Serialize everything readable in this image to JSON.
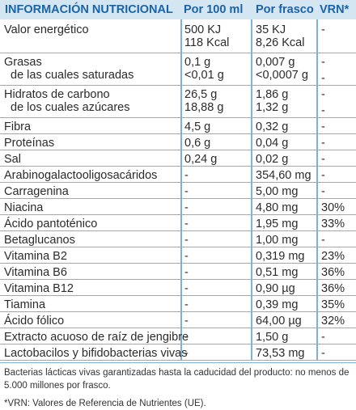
{
  "header": {
    "name": "INFORMACIÓN NUTRICIONAL",
    "per100": "Por 100 ml",
    "perBottle": "Por frasco",
    "vrn": "VRN*"
  },
  "rows": [
    {
      "name": "Valor energético",
      "per100": "500 KJ",
      "per100b": "118 Kcal",
      "bottle": "35 KJ",
      "bottleb": "8,26 Kcal",
      "vrn": "-"
    },
    {
      "name": "Grasas",
      "name2": "de las cuales saturadas",
      "per100": "0,1 g",
      "per100b": "<0,01 g",
      "bottle": "0,007 g",
      "bottleb": "<0,0007 g",
      "vrn": "-",
      "vrnb": "-"
    },
    {
      "name": "Hidratos de carbono",
      "name2": "de los cuales azúcares",
      "per100": "26,5 g",
      "per100b": "18,88 g",
      "bottle": "1,86 g",
      "bottleb": "1,32 g",
      "vrn": "-",
      "vrnb": "-"
    },
    {
      "name": "Fibra",
      "per100": "4,5 g",
      "bottle": "0,32 g",
      "vrn": "-"
    },
    {
      "name": "Proteínas",
      "per100": "0,6 g",
      "bottle": "0,04 g",
      "vrn": "-"
    },
    {
      "name": "Sal",
      "per100": "0,24 g",
      "bottle": "0,02 g",
      "vrn": "-"
    },
    {
      "name": "Arabinogalactooligosacáridos",
      "per100": "-",
      "bottle": "354,60 mg",
      "vrn": "-"
    },
    {
      "name": "Carragenina",
      "per100": "-",
      "bottle": "5,00 mg",
      "vrn": "-"
    },
    {
      "name": "Niacina",
      "per100": "-",
      "bottle": "4,80 mg",
      "vrn": "30%"
    },
    {
      "name": "Ácido pantoténico",
      "per100": "-",
      "bottle": "1,95 mg",
      "vrn": "33%"
    },
    {
      "name": "Betaglucanos",
      "per100": "-",
      "bottle": "1,00 mg",
      "vrn": "-"
    },
    {
      "name": "Vitamina B2",
      "per100": "-",
      "bottle": "0,319 mg",
      "vrn": "23%"
    },
    {
      "name": "Vitamina B6",
      "per100": "-",
      "bottle": "0,51 mg",
      "vrn": "36%"
    },
    {
      "name": "Vitamina B12",
      "per100": "-",
      "bottle": "0,90 µg",
      "vrn": "36%"
    },
    {
      "name": "Tiamina",
      "per100": "-",
      "bottle": "0,39 mg",
      "vrn": "35%"
    },
    {
      "name": "Ácido fólico",
      "per100": "-",
      "bottle": "64,00 µg",
      "vrn": "32%"
    },
    {
      "name": "Extracto acuoso de raíz de jengibre",
      "per100": "-",
      "bottle": "1,50 g",
      "vrn": "-"
    },
    {
      "name": "Lactobacilos y bifidobacterias vivas",
      "per100": "-",
      "bottle": "73,53 mg",
      "vrn": "-"
    }
  ],
  "footer": {
    "note": "Bacterias lácticas vivas garantizadas hasta la caducidad del producto: no menos de 5.000 millones por frasco.",
    "vrn_note": "*VRN: Valores de Referencia de Nutrientes (UE)."
  }
}
